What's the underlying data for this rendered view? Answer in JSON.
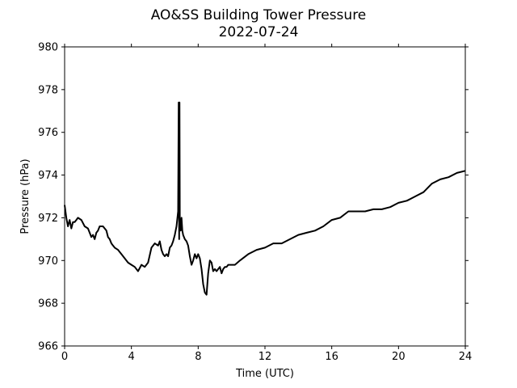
{
  "chart_data": {
    "type": "line",
    "title": "AO&SS Building Tower Pressure",
    "subtitle": "2022-07-24",
    "xlabel": "Time (UTC)",
    "ylabel": "Pressure (hPa)",
    "xlim": [
      0,
      24
    ],
    "ylim": [
      966,
      980
    ],
    "xticks": [
      0,
      4,
      8,
      12,
      16,
      20,
      24
    ],
    "yticks": [
      966,
      968,
      970,
      972,
      974,
      976,
      978,
      980
    ],
    "grid": false,
    "legend": "none",
    "line_color": "#000000",
    "series": [
      {
        "x": [
          0.0,
          0.1,
          0.2,
          0.3,
          0.4,
          0.5,
          0.6,
          0.7,
          0.8,
          1.0,
          1.2,
          1.4,
          1.5,
          1.6,
          1.7,
          1.8,
          1.9,
          2.0,
          2.1,
          2.2,
          2.3,
          2.4,
          2.5,
          2.6,
          2.7,
          2.8,
          2.9,
          3.0,
          3.2,
          3.4,
          3.6,
          3.8,
          4.0,
          4.2,
          4.4,
          4.6,
          4.8,
          5.0,
          5.2,
          5.4,
          5.6,
          5.7,
          5.8,
          5.9,
          6.0,
          6.1,
          6.2,
          6.3,
          6.4,
          6.5,
          6.6,
          6.7,
          6.8,
          6.83,
          6.86,
          6.88,
          6.9,
          6.95,
          7.0,
          7.05,
          7.1,
          7.2,
          7.3,
          7.4,
          7.5,
          7.6,
          7.7,
          7.8,
          7.9,
          8.0,
          8.1,
          8.2,
          8.3,
          8.4,
          8.5,
          8.6,
          8.7,
          8.8,
          8.9,
          9.0,
          9.1,
          9.2,
          9.3,
          9.4,
          9.5,
          9.6,
          9.7,
          9.8,
          10.0,
          10.2,
          10.5,
          11.0,
          11.5,
          12.0,
          12.5,
          13.0,
          13.5,
          14.0,
          14.5,
          15.0,
          15.5,
          16.0,
          16.5,
          17.0,
          17.5,
          18.0,
          18.5,
          19.0,
          19.5,
          20.0,
          20.5,
          21.0,
          21.5,
          22.0,
          22.5,
          23.0,
          23.5,
          24.0
        ],
        "y": [
          972.6,
          972.0,
          971.6,
          971.9,
          971.5,
          971.8,
          971.8,
          971.9,
          972.0,
          971.9,
          971.6,
          971.5,
          971.3,
          971.1,
          971.2,
          971.0,
          971.3,
          971.4,
          971.6,
          971.6,
          971.6,
          971.5,
          971.4,
          971.1,
          971.0,
          970.8,
          970.7,
          970.6,
          970.5,
          970.3,
          970.1,
          969.9,
          969.8,
          969.7,
          969.5,
          969.8,
          969.7,
          969.9,
          970.6,
          970.8,
          970.7,
          970.9,
          970.5,
          970.3,
          970.2,
          970.3,
          970.2,
          970.6,
          970.7,
          970.9,
          971.2,
          971.6,
          972.3,
          977.4,
          971.0,
          977.4,
          971.8,
          971.4,
          972.0,
          971.4,
          971.2,
          971.0,
          970.9,
          970.7,
          970.2,
          969.8,
          970.0,
          970.3,
          970.1,
          970.3,
          970.1,
          969.6,
          968.9,
          968.5,
          968.4,
          969.4,
          970.0,
          969.9,
          969.5,
          969.6,
          969.5,
          969.6,
          969.7,
          969.4,
          969.6,
          969.7,
          969.7,
          969.8,
          969.8,
          969.8,
          970.0,
          970.3,
          970.5,
          970.6,
          970.8,
          970.8,
          971.0,
          971.2,
          971.3,
          971.4,
          971.6,
          971.9,
          972.0,
          972.3,
          972.3,
          972.3,
          972.4,
          972.4,
          972.5,
          972.7,
          972.8,
          973.0,
          973.2,
          973.6,
          973.8,
          973.9,
          974.1,
          974.2
        ]
      }
    ]
  }
}
